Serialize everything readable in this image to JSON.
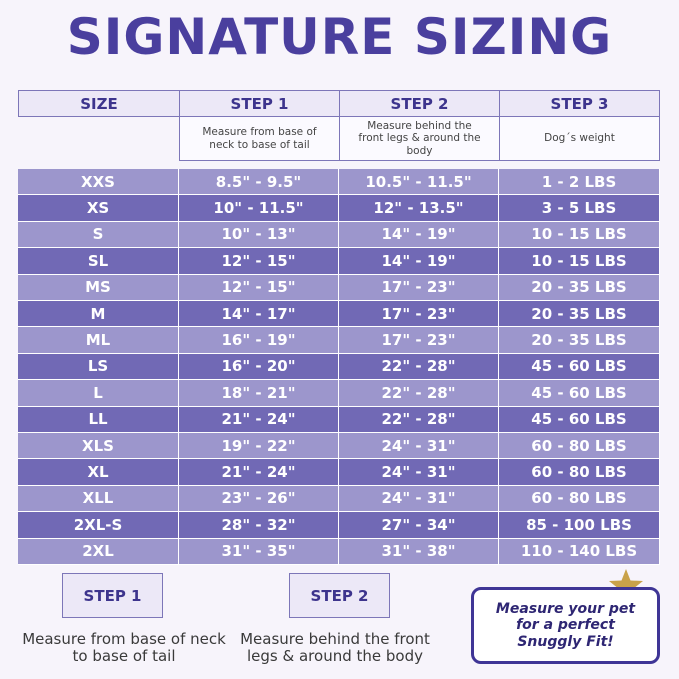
{
  "title": "SIGNATURE SIZING",
  "table": {
    "header": [
      "SIZE",
      "STEP 1",
      "STEP 2",
      "STEP 3"
    ],
    "descriptions": [
      "Measure from base of neck to base of tail",
      "Measure behind the front legs & around the body",
      "Dog´s weight"
    ],
    "rows": [
      [
        "XXS",
        "8.5\" - 9.5\"",
        "10.5\" - 11.5\"",
        "1 - 2 LBS"
      ],
      [
        "XS",
        "10\" - 11.5\"",
        "12\" - 13.5\"",
        "3 - 5 LBS"
      ],
      [
        "S",
        "10\" - 13\"",
        "14\" - 19\"",
        "10 - 15 LBS"
      ],
      [
        "SL",
        "12\" - 15\"",
        "14\" - 19\"",
        "10 - 15 LBS"
      ],
      [
        "MS",
        "12\" - 15\"",
        "17\" - 23\"",
        "20 - 35 LBS"
      ],
      [
        "M",
        "14\" - 17\"",
        "17\" - 23\"",
        "20 - 35 LBS"
      ],
      [
        "ML",
        "16\" - 19\"",
        "17\" - 23\"",
        "20 - 35 LBS"
      ],
      [
        "LS",
        "16\" - 20\"",
        "22\" - 28\"",
        "45 - 60 LBS"
      ],
      [
        "L",
        "18\" - 21\"",
        "22\" - 28\"",
        "45 - 60 LBS"
      ],
      [
        "LL",
        "21\" - 24\"",
        "22\" - 28\"",
        "45 - 60 LBS"
      ],
      [
        "XLS",
        "19\" - 22\"",
        "24\" - 31\"",
        "60 - 80 LBS"
      ],
      [
        "XL",
        "21\" - 24\"",
        "24\" - 31\"",
        "60 - 80 LBS"
      ],
      [
        "XLL",
        "23\" - 26\"",
        "24\" - 31\"",
        "60 - 80 LBS"
      ],
      [
        "2XL-S",
        "28\" - 32\"",
        "27\" - 34\"",
        "85 - 100 LBS"
      ],
      [
        "2XL",
        "31\" - 35\"",
        "31\" - 38\"",
        "110 - 140 LBS"
      ]
    ]
  },
  "steps": [
    {
      "label": "STEP 1",
      "text": "Measure from base of neck to base of tail"
    },
    {
      "label": "STEP 2",
      "text": "Measure behind the front legs & around the body"
    }
  ],
  "callout": "Measure your pet for a perfect Snuggly Fit!"
}
